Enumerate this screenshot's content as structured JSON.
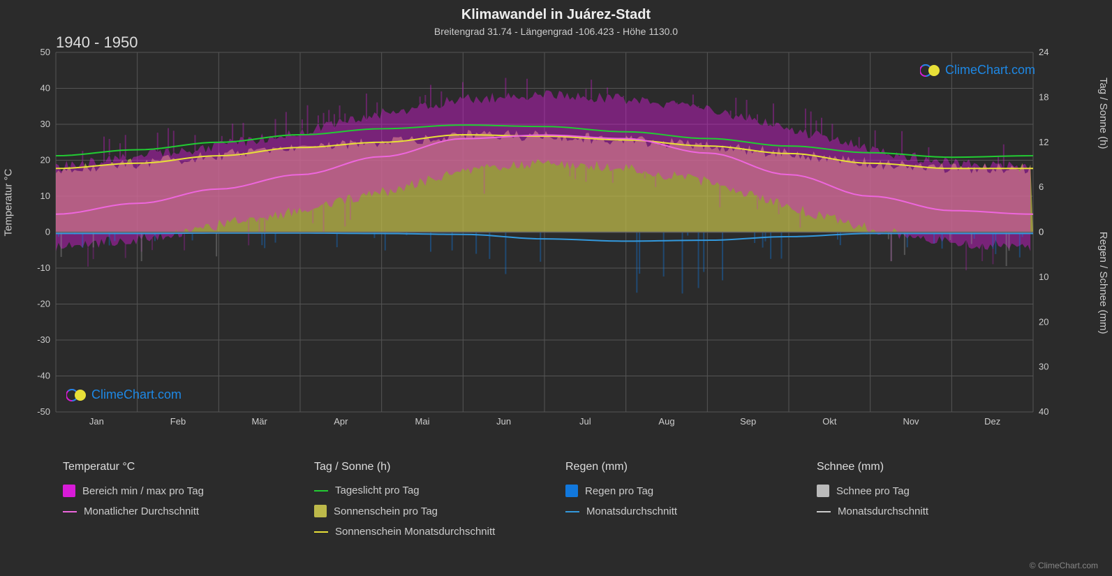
{
  "title": "Klimawandel in Juárez-Stadt",
  "subtitle": "Breitengrad 31.74 - Längengrad -106.423 - Höhe 1130.0",
  "year_range": "1940 - 1950",
  "axes": {
    "left_label": "Temperatur °C",
    "left_ticks": [
      -50,
      -40,
      -30,
      -20,
      -10,
      0,
      10,
      20,
      30,
      40,
      50
    ],
    "right_top_label": "Tag / Sonne (h)",
    "right_top_ticks": [
      0,
      6,
      12,
      18,
      24
    ],
    "right_top_tick_positions": [
      0,
      12.5,
      25,
      37.5,
      50
    ],
    "right_bottom_label": "Regen / Schnee (mm)",
    "right_bottom_ticks": [
      0,
      10,
      20,
      30,
      40
    ],
    "right_bottom_tick_positions": [
      0,
      -12.5,
      -25,
      -37.5,
      -50
    ],
    "x_labels": [
      "Jan",
      "Feb",
      "Mär",
      "Apr",
      "Mai",
      "Jun",
      "Jul",
      "Aug",
      "Sep",
      "Okt",
      "Nov",
      "Dez"
    ]
  },
  "chart": {
    "type": "multi-series-area-line",
    "background_color": "#2b2b2b",
    "grid_color": "#555555",
    "temp_range_color": "#d81bd8",
    "temp_range_opacity": 0.45,
    "temp_avg_color": "#ee66dd",
    "temp_avg_width": 2,
    "daylight_color": "#22cc33",
    "daylight_width": 2,
    "sunshine_fill_color": "#bdb94a",
    "sunshine_fill_opacity": 0.75,
    "sunshine_avg_color": "#e8e038",
    "sunshine_avg_width": 2,
    "rain_color": "#1178dd",
    "rain_avg_color": "#3399dd",
    "rain_avg_width": 2,
    "snow_color": "#999999",
    "snow_avg_color": "#cccccc",
    "temp_max": [
      18,
      21,
      24,
      28,
      33,
      37,
      38,
      37,
      34,
      29,
      23,
      19
    ],
    "temp_min": [
      -4,
      -2,
      2,
      6,
      11,
      17,
      19,
      18,
      14,
      7,
      1,
      -3
    ],
    "temp_avg": [
      5,
      8,
      12,
      16,
      21,
      26,
      27,
      26,
      22,
      16,
      10,
      6
    ],
    "daylight_h": [
      10.2,
      11.0,
      12.0,
      13.0,
      13.8,
      14.3,
      14.1,
      13.4,
      12.5,
      11.5,
      10.6,
      10.0
    ],
    "sunshine_h": [
      8.5,
      9.2,
      10.2,
      11.3,
      12.0,
      13.0,
      12.8,
      12.3,
      11.5,
      10.5,
      9.2,
      8.5
    ],
    "rain_avg_mm": [
      0.3,
      0.3,
      0.2,
      0.2,
      0.3,
      0.5,
      1.5,
      2.0,
      1.8,
      1.0,
      0.3,
      0.3
    ],
    "rain_spikes_mm": [
      6,
      5,
      3,
      4,
      4,
      8,
      12,
      15,
      14,
      8,
      5,
      6
    ],
    "temp_extreme_high": [
      22,
      26,
      29,
      33,
      37,
      40,
      41,
      40,
      37,
      33,
      28,
      24
    ],
    "temp_extreme_low": [
      -10,
      -8,
      -4,
      0,
      5,
      12,
      16,
      15,
      10,
      2,
      -5,
      -9
    ]
  },
  "legend": {
    "col1_header": "Temperatur °C",
    "col1_item1": "Bereich min / max pro Tag",
    "col1_item2": "Monatlicher Durchschnitt",
    "col2_header": "Tag / Sonne (h)",
    "col2_item1": "Tageslicht pro Tag",
    "col2_item2": "Sonnenschein pro Tag",
    "col2_item3": "Sonnenschein Monatsdurchschnitt",
    "col3_header": "Regen (mm)",
    "col3_item1": "Regen pro Tag",
    "col3_item2": "Monatsdurchschnitt",
    "col4_header": "Schnee (mm)",
    "col4_item1": "Schnee pro Tag",
    "col4_item2": "Monatsdurchschnitt"
  },
  "colors": {
    "temp_box": "#d81bd8",
    "temp_line": "#ee66dd",
    "daylight_line": "#22cc33",
    "sunshine_box": "#bdb94a",
    "sunshine_line": "#e8e038",
    "rain_box": "#1178dd",
    "rain_line": "#3399dd",
    "snow_box": "#bbbbbb",
    "snow_line": "#cccccc"
  },
  "branding": "ClimeChart.com",
  "copyright": "© ClimeChart.com"
}
